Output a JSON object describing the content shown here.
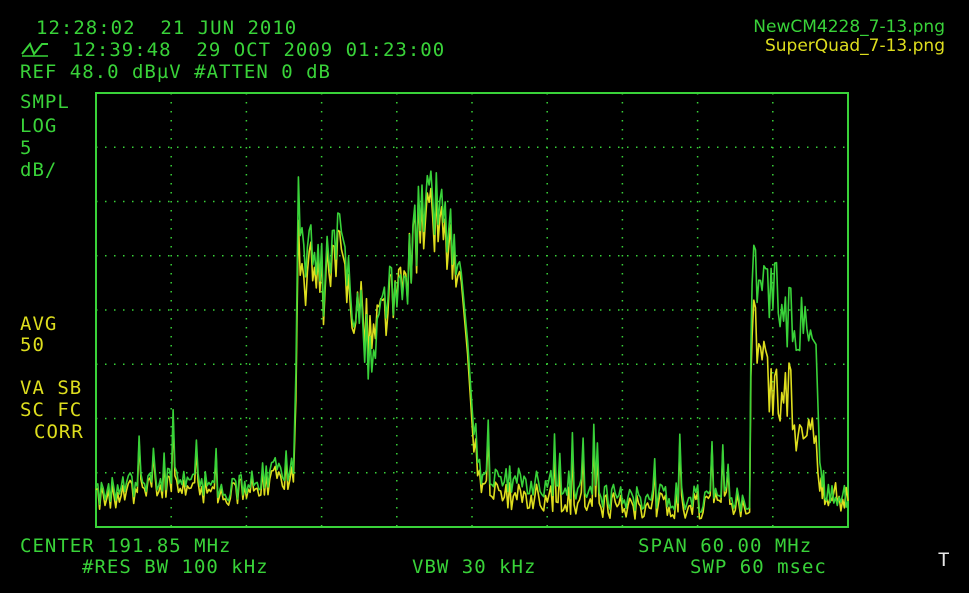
{
  "header": {
    "time_line_1": "12:28:02  21 JUN 2010",
    "time_line_2": "12:39:48  29 OCT 2009 01:23:00",
    "ref_line": "REF 48.0 dBµV #ATTEN 0 dB"
  },
  "left_labels": {
    "mode": "SMPL",
    "scale": "LOG",
    "scale_value": "5",
    "scale_unit": "dB/",
    "avg": "AVG",
    "avg_value": "50",
    "va_sb": "VA SB",
    "sc_fc": "SC FC",
    "corr": "CORR"
  },
  "legend": {
    "file_green": "NewCM4228_7-13.png",
    "file_yellow": "SuperQuad_7-13.png"
  },
  "footer": {
    "center": "CENTER 191.85 MHz",
    "span": "SPAN 60.00 MHz",
    "res_bw": "#RES BW 100 kHz",
    "vbw": "VBW 30 kHz",
    "swp": "SWP 60 msec",
    "corner": "T"
  },
  "colors": {
    "green": "#39d239",
    "yellow": "#dede1e",
    "grid": "#39d239",
    "background": "#000000"
  },
  "chart_data": {
    "type": "line",
    "title": "",
    "xlabel": "",
    "ylabel": "",
    "xlim": [
      161.85,
      221.85
    ],
    "ylim": [
      -2.0,
      48.0
    ],
    "grid": true,
    "legend": "top-right",
    "series": [
      {
        "name": "NewCM4228_7-13.png",
        "color": "#39d239",
        "x": [
          161.85,
          164.0,
          166.0,
          168.0,
          170.0,
          172.0,
          174.0,
          176.0,
          177.6,
          178.0,
          179.0,
          180.0,
          181.0,
          182.0,
          183.0,
          184.0,
          185.0,
          186.0,
          187.0,
          188.0,
          189.0,
          190.0,
          191.0,
          192.0,
          192.6,
          193.0,
          195.0,
          197.0,
          199.0,
          201.0,
          203.0,
          205.0,
          207.0,
          209.0,
          211.0,
          213.0,
          214.0,
          214.2,
          215.0,
          216.0,
          217.0,
          218.0,
          219.0,
          219.6,
          220.0,
          221.0,
          221.85
        ],
        "y": [
          1.5,
          3.0,
          2.5,
          4.0,
          3.0,
          2.5,
          3.0,
          4.5,
          5.0,
          34.0,
          29.0,
          26.0,
          31.0,
          28.0,
          21.0,
          17.0,
          26.0,
          23.0,
          30.0,
          35.0,
          36.0,
          33.0,
          24.0,
          10.0,
          4.0,
          3.2,
          3.5,
          3.0,
          3.0,
          2.5,
          1.5,
          1.5,
          1.5,
          1.5,
          1.0,
          1.2,
          1.0,
          28.0,
          24.0,
          26.0,
          22.0,
          22.0,
          24.0,
          6.0,
          2.0,
          1.5,
          1.0
        ]
      },
      {
        "name": "SuperQuad_7-13.png",
        "color": "#dede1e",
        "x": [
          161.85,
          164.0,
          166.0,
          168.0,
          170.0,
          172.0,
          174.0,
          176.0,
          177.6,
          178.0,
          179.0,
          180.0,
          181.0,
          182.0,
          183.0,
          184.0,
          185.0,
          186.0,
          187.0,
          188.0,
          189.0,
          190.0,
          191.0,
          192.0,
          192.6,
          193.0,
          195.0,
          197.0,
          199.0,
          201.0,
          203.0,
          205.0,
          207.0,
          209.0,
          211.0,
          213.0,
          214.0,
          214.2,
          215.0,
          216.0,
          217.0,
          218.0,
          219.0,
          219.6,
          220.0,
          221.0,
          221.85
        ],
        "y": [
          1.0,
          2.0,
          2.0,
          3.0,
          2.0,
          2.0,
          2.5,
          3.5,
          4.0,
          29.0,
          27.0,
          25.0,
          29.0,
          26.0,
          22.0,
          20.0,
          24.0,
          24.0,
          30.0,
          33.0,
          34.0,
          31.0,
          23.0,
          8.0,
          3.0,
          2.0,
          1.5,
          1.5,
          1.0,
          1.0,
          0.5,
          0.5,
          0.5,
          0.5,
          0.5,
          0.5,
          0.5,
          22.0,
          16.0,
          13.0,
          14.0,
          9.0,
          11.0,
          3.0,
          1.5,
          1.5,
          1.0
        ]
      }
    ]
  }
}
